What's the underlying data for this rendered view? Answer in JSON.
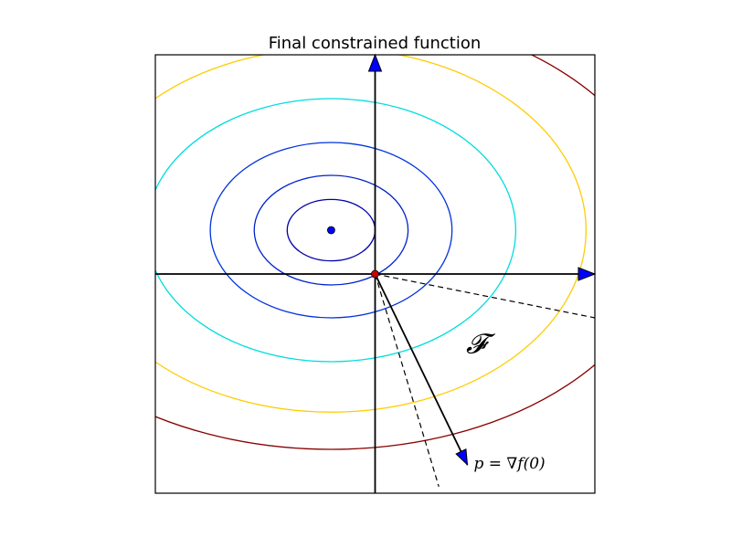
{
  "chart_data": {
    "type": "contour",
    "title": "Final constrained function",
    "xlim": [
      -5,
      5
    ],
    "ylim": [
      -5,
      5
    ],
    "grid": false,
    "center": [
      -1,
      1
    ],
    "contours": [
      {
        "rx": 1.0,
        "ry": 0.7,
        "color": "#0000aa"
      },
      {
        "rx": 1.75,
        "ry": 1.25,
        "color": "#0022cc"
      },
      {
        "rx": 2.75,
        "ry": 2.0,
        "color": "#0033dd"
      },
      {
        "rx": 4.2,
        "ry": 3.0,
        "color": "#00dddd"
      },
      {
        "rx": 5.8,
        "ry": 4.15,
        "color": "#ffcc00"
      },
      {
        "rx": 7.6,
        "ry": 5.0,
        "color": "#880000"
      }
    ],
    "minimum_point": {
      "x": -1,
      "y": 1,
      "color": "#0000ff"
    },
    "origin_point": {
      "x": 0,
      "y": 0,
      "color": "#cc0000"
    },
    "axis_arrows": [
      {
        "to": [
          5,
          0
        ],
        "color": "#0000ff"
      },
      {
        "to": [
          0,
          5
        ],
        "color": "#0000ff"
      }
    ],
    "gradient_arrow": {
      "from": [
        0,
        0
      ],
      "to": [
        2.1,
        -4.35
      ],
      "color": "#0000ff",
      "label": "p = ∇f(0)"
    },
    "cone_lines": [
      {
        "from": [
          0,
          0
        ],
        "to": [
          5,
          -1
        ],
        "style": "dashed"
      },
      {
        "from": [
          0,
          0
        ],
        "to": [
          1.45,
          -4.85
        ],
        "style": "dashed"
      }
    ],
    "region_label": {
      "text": "𝓕",
      "at": [
        2.3,
        -1.8
      ]
    }
  }
}
